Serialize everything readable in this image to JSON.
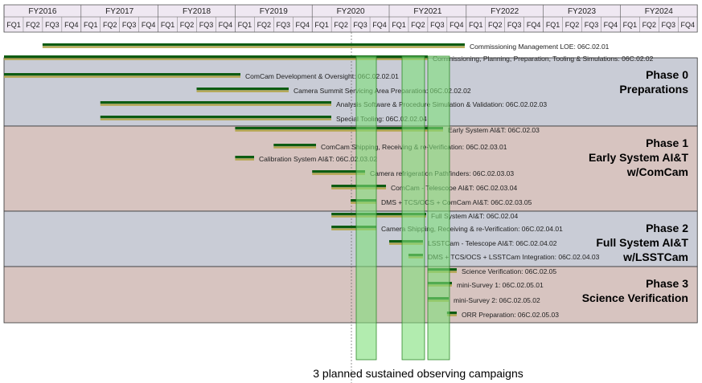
{
  "chart_data": {
    "type": "gantt",
    "fiscal_years": [
      "FY2016",
      "FY2017",
      "FY2018",
      "FY2019",
      "FY2020",
      "FY2021",
      "FY2022",
      "FY2023",
      "FY2024"
    ],
    "quarters": [
      "FQ1",
      "FQ2",
      "FQ3",
      "FQ4"
    ],
    "phases": [
      {
        "name": "Phase 0",
        "title": "Preparations",
        "band": "gray"
      },
      {
        "name": "Phase 1",
        "title": "Early System AI&T w/ComCam",
        "band": "pink"
      },
      {
        "name": "Phase 2",
        "title": "Full System AI&T w/LSSTCam",
        "band": "gray"
      },
      {
        "name": "Phase 3",
        "title": "Science Verification",
        "band": "pink"
      }
    ],
    "tasks": [
      {
        "label": "Commissioning Management LOE: 06C.02.01",
        "start": "FY2016 FQ3",
        "end": "FY2021 FQ4"
      },
      {
        "label": "Commissioning, Planning, Preparation, Tooling & Simulations: 06C.02.02",
        "start": "FY2016 FQ1",
        "end": "FY2021 FQ2"
      },
      {
        "label": "ComCam Development & Oversight: 06C.02.02.01",
        "start": "FY2016 FQ1",
        "end": "FY2018 FQ4"
      },
      {
        "label": "Camera Summit Servicing Area Preparation: 06C.02.02.02",
        "start": "FY2018 FQ3",
        "end": "FY2019 FQ4"
      },
      {
        "label": "Analysis Software & Procedure Simulation & Validation: 06C.02.02.03",
        "start": "FY2017 FQ2",
        "end": "FY2020 FQ1"
      },
      {
        "label": "Special Tooling: 06C.02.02.04",
        "start": "FY2017 FQ2",
        "end": "FY2019 FQ4"
      },
      {
        "label": "Early System AI&T: 06C.02.03",
        "start": "FY2019 FQ1",
        "end": "FY2021 FQ1"
      },
      {
        "label": "ComCam Shipping, Receiving & re-Verification: 06C.02.03.01",
        "start": "FY2019 FQ3",
        "end": "FY2019 FQ4"
      },
      {
        "label": "Calibration System AI&T: 06C.02.03.02",
        "start": "FY2019 FQ1",
        "end": "FY2019 FQ2"
      },
      {
        "label": "Camera refrigeration Pathfinders: 06C.02.03.03",
        "start": "FY2020 FQ1",
        "end": "FY2020 FQ3"
      },
      {
        "label": "ComCam - Telescope AI&T: 06C.02.03.04",
        "start": "FY2020 FQ2",
        "end": "FY2020 FQ4"
      },
      {
        "label": "DMS + TCS/OCS + ComCam AI&T: 06C.02.03.05",
        "start": "FY2020 FQ3",
        "end": "FY2020 FQ4"
      },
      {
        "label": "Full System AI&T: 06C.02.04",
        "start": "FY2020 FQ2",
        "end": "FY2021 FQ2"
      },
      {
        "label": "Camera Shipping, Receiving & re-Verification: 06C.02.04.01",
        "start": "FY2020 FQ2",
        "end": "FY2020 FQ4"
      },
      {
        "label": "LSSTCam - Telescope AI&T: 06C.02.04.02",
        "start": "FY2021 FQ1",
        "end": "FY2021 FQ2"
      },
      {
        "label": "DMS + TCS/OCS + LSSTCam Integration: 06C.02.04.03",
        "start": "FY2021 FQ2",
        "end": "FY2021 FQ2"
      },
      {
        "label": "Science Verification: 06C.02.05",
        "start": "FY2021 FQ3",
        "end": "FY2021 FQ4"
      },
      {
        "label": "mini-Survey 1: 06C.02.05.01",
        "start": "FY2021 FQ3",
        "end": "FY2021 FQ3"
      },
      {
        "label": "mini-Survey 2: 06C.02.05.02",
        "start": "FY2021 FQ3",
        "end": "FY2021 FQ4"
      },
      {
        "label": "ORR Preparation: 06C.02.05.03",
        "start": "FY2021 FQ4",
        "end": "FY2021 FQ4"
      }
    ],
    "campaigns": [
      {
        "start": "FY2020 FQ3",
        "end": "FY2020 FQ3"
      },
      {
        "start": "FY2021 FQ1",
        "end": "FY2021 FQ2"
      },
      {
        "start": "FY2021 FQ3",
        "end": "FY2021 FQ3"
      }
    ],
    "caption": "3 planned sustained observing campaigns",
    "colors": {
      "header_bg": "#efe8f2",
      "gray_band": "#c9ccd6",
      "pink_band": "#d7c4c0",
      "bar_dark": "#0d5c12",
      "bar_mid": "#3d8a2a",
      "bar_baseline": "#b5a64e",
      "campaign_fill": "#7fe07a"
    }
  }
}
